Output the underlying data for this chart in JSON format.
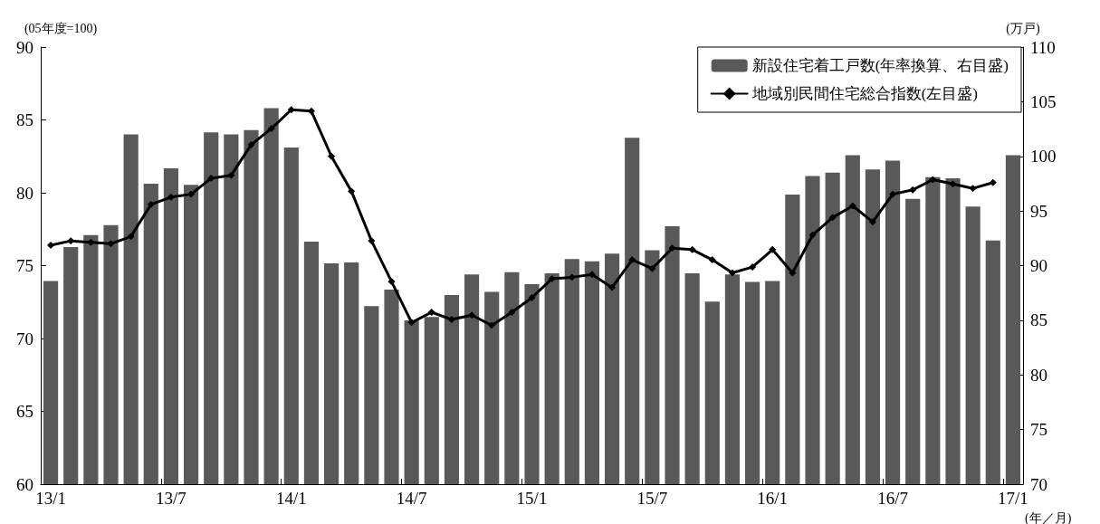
{
  "chart_data": {
    "type": "bar",
    "categories": [
      "13/1",
      null,
      null,
      null,
      null,
      null,
      "13/7",
      null,
      null,
      null,
      null,
      null,
      "14/1",
      null,
      null,
      null,
      null,
      null,
      "14/7",
      null,
      null,
      null,
      null,
      null,
      "15/1",
      null,
      null,
      null,
      null,
      null,
      "15/7",
      null,
      null,
      null,
      null,
      null,
      "16/1",
      null,
      null,
      null,
      null,
      null,
      "16/7",
      null,
      null,
      null,
      null,
      null,
      "17/1"
    ],
    "series": [
      {
        "name": "新設住宅着工戸数(年率換算、右目盛)",
        "axis": "y2",
        "color": "#595959",
        "values": [
          88.6,
          91.7,
          92.8,
          93.7,
          102.0,
          97.5,
          98.9,
          97.4,
          102.2,
          102.0,
          102.4,
          104.4,
          100.8,
          92.2,
          90.2,
          90.3,
          86.3,
          87.8,
          85.0,
          85.3,
          87.3,
          89.2,
          87.6,
          89.4,
          88.3,
          89.3,
          90.6,
          90.4,
          91.1,
          101.7,
          91.4,
          93.6,
          89.3,
          86.7,
          89.2,
          88.5,
          88.6,
          96.5,
          98.2,
          98.5,
          100.1,
          98.8,
          99.6,
          96.1,
          98.1,
          98.0,
          95.4,
          92.3,
          100.1
        ]
      },
      {
        "name": "地域別民間住宅総合指数(左目盛)",
        "type": "line",
        "color": "#000000",
        "values": [
          76.4,
          76.7,
          76.6,
          76.5,
          77.0,
          79.2,
          79.7,
          79.9,
          81.0,
          81.2,
          83.3,
          84.4,
          85.7,
          85.6,
          82.5,
          80.1,
          76.7,
          73.9,
          71.1,
          71.8,
          71.3,
          71.6,
          70.9,
          71.8,
          72.8,
          74.1,
          74.2,
          74.4,
          73.5,
          75.4,
          74.8,
          76.2,
          76.1,
          75.4,
          74.5,
          74.9,
          76.1,
          74.5,
          77.1,
          78.3,
          79.1,
          78.0,
          79.9,
          80.2,
          80.9,
          80.6,
          80.3,
          80.7,
          null
        ]
      }
    ],
    "xlabel": "(年／月)",
    "ylabel": "(05年度=100)",
    "y2label": "(万戸)",
    "ylim": [
      60,
      90
    ],
    "yticks": [
      60,
      65,
      70,
      75,
      80,
      85,
      90
    ],
    "y2lim": [
      70,
      110
    ],
    "y2ticks": [
      70,
      75,
      80,
      85,
      90,
      95,
      100,
      105,
      110
    ],
    "marker": "diamond",
    "line_style": "solid",
    "legend": "top right",
    "grid": false
  }
}
